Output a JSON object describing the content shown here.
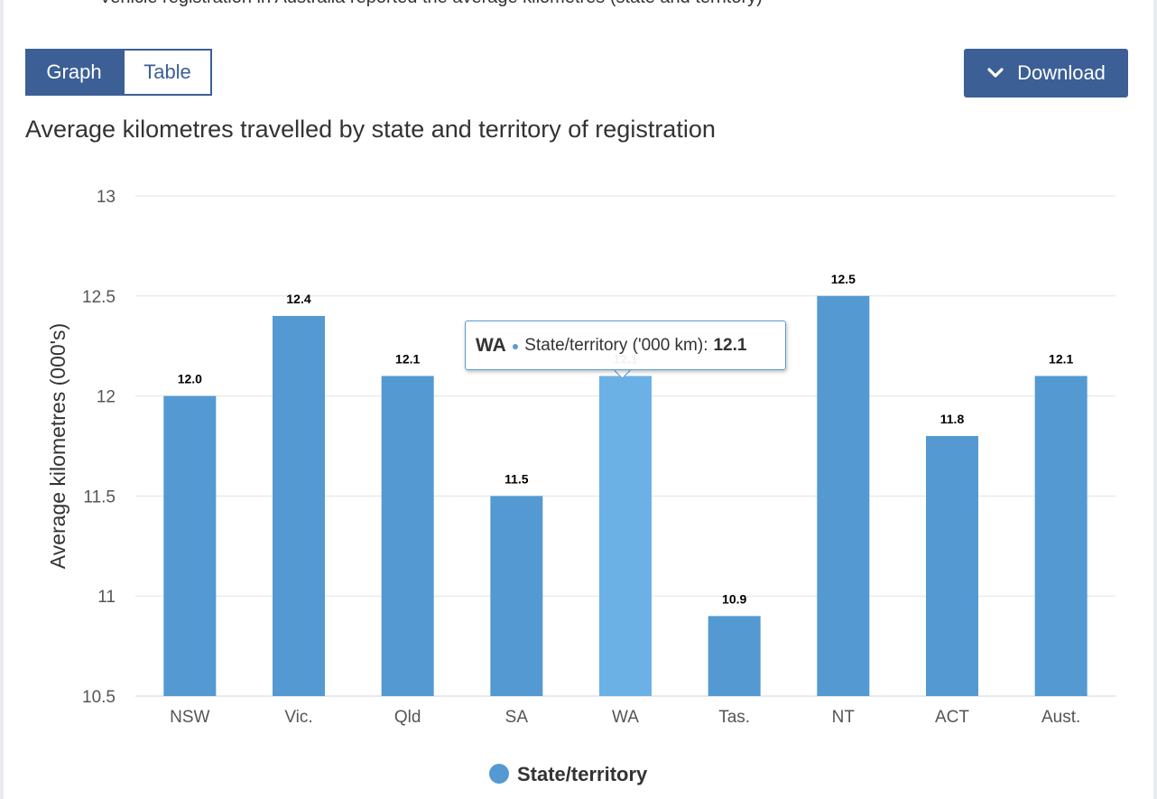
{
  "header": {
    "partial_text": "Vehicle registration in Australia reported the average kilometres (state and territory)"
  },
  "tabs": [
    {
      "label": "Graph",
      "active": true
    },
    {
      "label": "Table",
      "active": false
    }
  ],
  "download": {
    "label": "Download",
    "icon": "chevron-down-icon"
  },
  "colors": {
    "bar": "#5499d1",
    "bar_hover": "#6cb1e6",
    "accent": "#3c5f95",
    "grid": "#e3e3e3"
  },
  "tooltip": {
    "category": "WA",
    "series": "State/territory ('000 km):",
    "value": "12.1"
  },
  "chart_data": {
    "type": "bar",
    "title": "Average kilometres travelled by state and territory of registration",
    "ylabel": "Average kilometres (000's)",
    "xlabel": "",
    "categories": [
      "NSW",
      "Vic.",
      "Qld",
      "SA",
      "WA",
      "Tas.",
      "NT",
      "ACT",
      "Aust."
    ],
    "series": [
      {
        "name": "State/territory",
        "values": [
          12.0,
          12.4,
          12.1,
          11.5,
          12.1,
          10.9,
          12.5,
          11.8,
          12.1
        ],
        "labels": [
          "12.0",
          "12.4",
          "12.1",
          "11.5",
          "12.1",
          "10.9",
          "12.5",
          "11.8",
          "12.1"
        ]
      }
    ],
    "ylim": [
      10.5,
      13
    ],
    "yticks": [
      "10.5",
      "11",
      "11.5",
      "12",
      "12.5",
      "13"
    ],
    "ytick_values": [
      10.5,
      11,
      11.5,
      12,
      12.5,
      13
    ],
    "highlighted": "WA",
    "grid": true,
    "legend": "bottom-center"
  }
}
